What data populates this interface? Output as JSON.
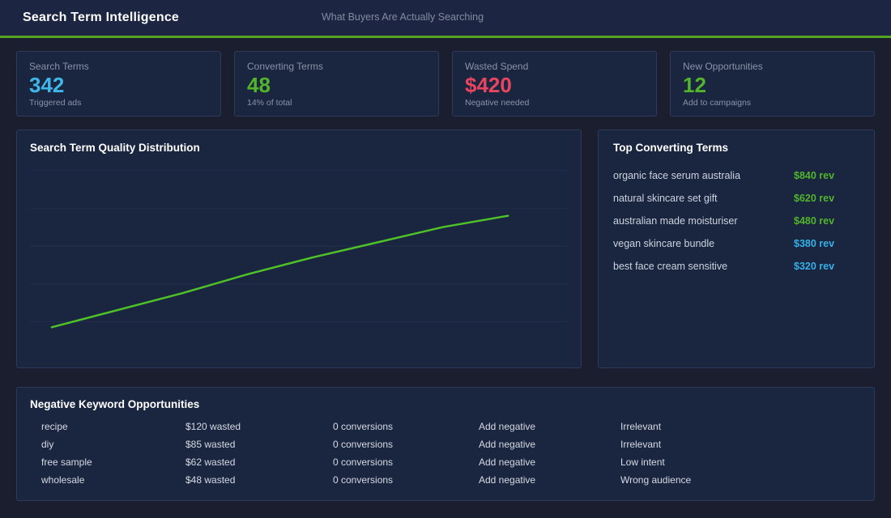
{
  "header": {
    "title": "Search Term Intelligence",
    "subtitle": "What Buyers Are Actually Searching",
    "accent_color": "#55a421"
  },
  "stats": [
    {
      "label": "Search Terms",
      "value": "342",
      "sub": "Triggered ads",
      "color": "#3fb6e8"
    },
    {
      "label": "Converting Terms",
      "value": "48",
      "sub": "14% of total",
      "color": "#52b42a"
    },
    {
      "label": "Wasted Spend",
      "value": "$420",
      "sub": "Negative needed",
      "color": "#e94560"
    },
    {
      "label": "New Opportunities",
      "value": "12",
      "sub": "Add to campaigns",
      "color": "#52b42a"
    }
  ],
  "chart_data": {
    "type": "line",
    "title": "Search Term Quality Distribution",
    "x": [
      1,
      2,
      3,
      4,
      5,
      6,
      7,
      8
    ],
    "values": [
      0,
      9,
      18,
      28,
      37,
      45,
      53,
      59
    ],
    "xlabel": "",
    "ylabel": "",
    "axis_tick_labels_visible": false,
    "grid": true,
    "gridline_count": 5,
    "line_color": "#4fc228",
    "legend": "none"
  },
  "top_terms": {
    "title": "Top Converting Terms",
    "items": [
      {
        "term": "organic face serum australia",
        "rev": "$840 rev",
        "color": "#52b42a"
      },
      {
        "term": "natural skincare set gift",
        "rev": "$620 rev",
        "color": "#52b42a"
      },
      {
        "term": "australian made moisturiser",
        "rev": "$480 rev",
        "color": "#52b42a"
      },
      {
        "term": "vegan skincare bundle",
        "rev": "$380 rev",
        "color": "#35b0e8"
      },
      {
        "term": "best face cream sensitive",
        "rev": "$320 rev",
        "color": "#35b0e8"
      }
    ]
  },
  "negatives": {
    "title": "Negative Keyword Opportunities",
    "rows": [
      {
        "keyword": "recipe",
        "wasted": "$120 wasted",
        "conversions": "0 conversions",
        "action": "Add negative",
        "reason": "Irrelevant"
      },
      {
        "keyword": "diy",
        "wasted": "$85 wasted",
        "conversions": "0 conversions",
        "action": "Add negative",
        "reason": "Irrelevant"
      },
      {
        "keyword": "free sample",
        "wasted": "$62 wasted",
        "conversions": "0 conversions",
        "action": "Add negative",
        "reason": "Low intent"
      },
      {
        "keyword": "wholesale",
        "wasted": "$48 wasted",
        "conversions": "0 conversions",
        "action": "Add negative",
        "reason": "Wrong audience"
      }
    ]
  }
}
